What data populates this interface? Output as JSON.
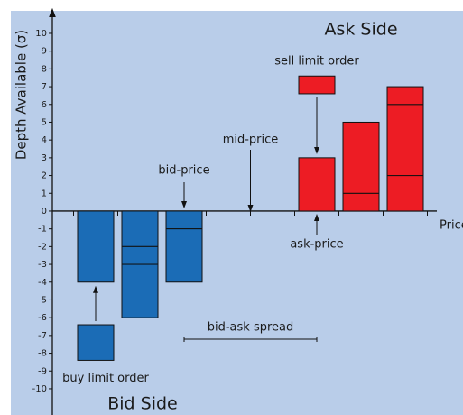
{
  "chart_data": {
    "type": "bar",
    "title": "Ask Side",
    "subtitle": "Bid Side",
    "y_label": "Depth Available (σ)",
    "x_label": "Price",
    "categories": [
      null,
      null,
      null,
      null,
      null,
      null,
      null,
      null
    ],
    "series": [
      {
        "name": "Bid Side",
        "color": "#1b6cb6",
        "stacks": [
          [
            -4
          ],
          [
            -2,
            -1,
            -3
          ],
          [
            -1,
            -3
          ],
          [],
          [],
          [],
          [],
          []
        ]
      },
      {
        "name": "Ask Side",
        "color": "#ed1c24",
        "stacks": [
          [],
          [],
          [],
          [],
          [],
          [
            3
          ],
          [
            1,
            4
          ],
          [
            2,
            4,
            1
          ]
        ]
      }
    ],
    "limit_orders": [
      {
        "label": "sell limit order",
        "category": 5,
        "range": [
          6.6,
          7.6
        ],
        "color": "#ed1c24"
      },
      {
        "label": "buy limit order",
        "category": 0,
        "range": [
          -8.4,
          -6.4
        ],
        "color": "#1b6cb6"
      }
    ],
    "annotations": {
      "bid_price": "bid-price",
      "ask_price": "ask-price",
      "mid_price": "mid-price",
      "spread": "bid-ask spread"
    },
    "ylim": [
      -11.5,
      11.1
    ],
    "yticks": [
      -10,
      -9,
      -8,
      -7,
      -6,
      -5,
      -4,
      -3,
      -2,
      -1,
      0,
      1,
      2,
      3,
      4,
      5,
      6,
      7,
      8,
      9,
      10
    ],
    "grid": false
  }
}
